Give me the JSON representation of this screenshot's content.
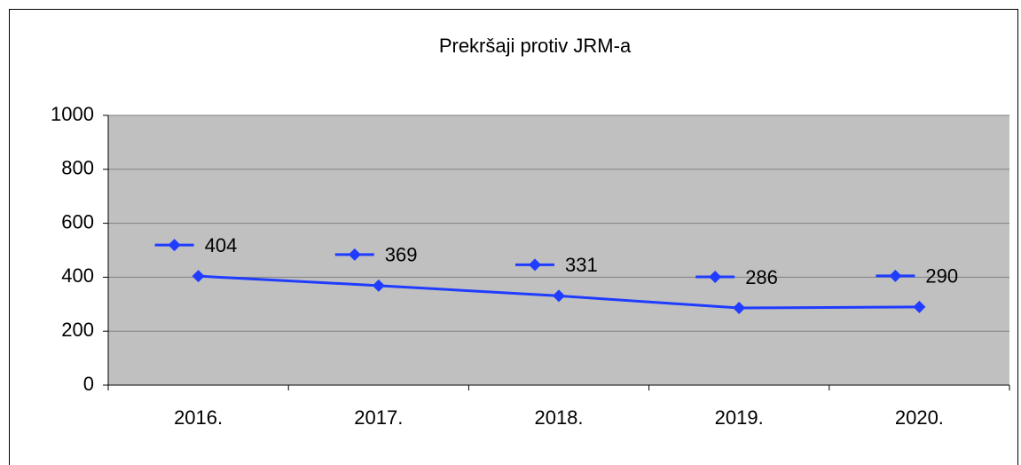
{
  "chart_data": {
    "type": "line",
    "title": "Prekršaji protiv JRM-a",
    "categories": [
      "2016.",
      "2017.",
      "2018.",
      "2019.",
      "2020."
    ],
    "series": [
      {
        "name": "Prekršaji protiv JRM-a",
        "color": "#1f3cff",
        "values": [
          404,
          369,
          331,
          286,
          290
        ]
      }
    ],
    "ylim": [
      0,
      1000
    ],
    "yticks": [
      0,
      200,
      400,
      600,
      800,
      1000
    ],
    "grid": true,
    "data_labels": true
  }
}
